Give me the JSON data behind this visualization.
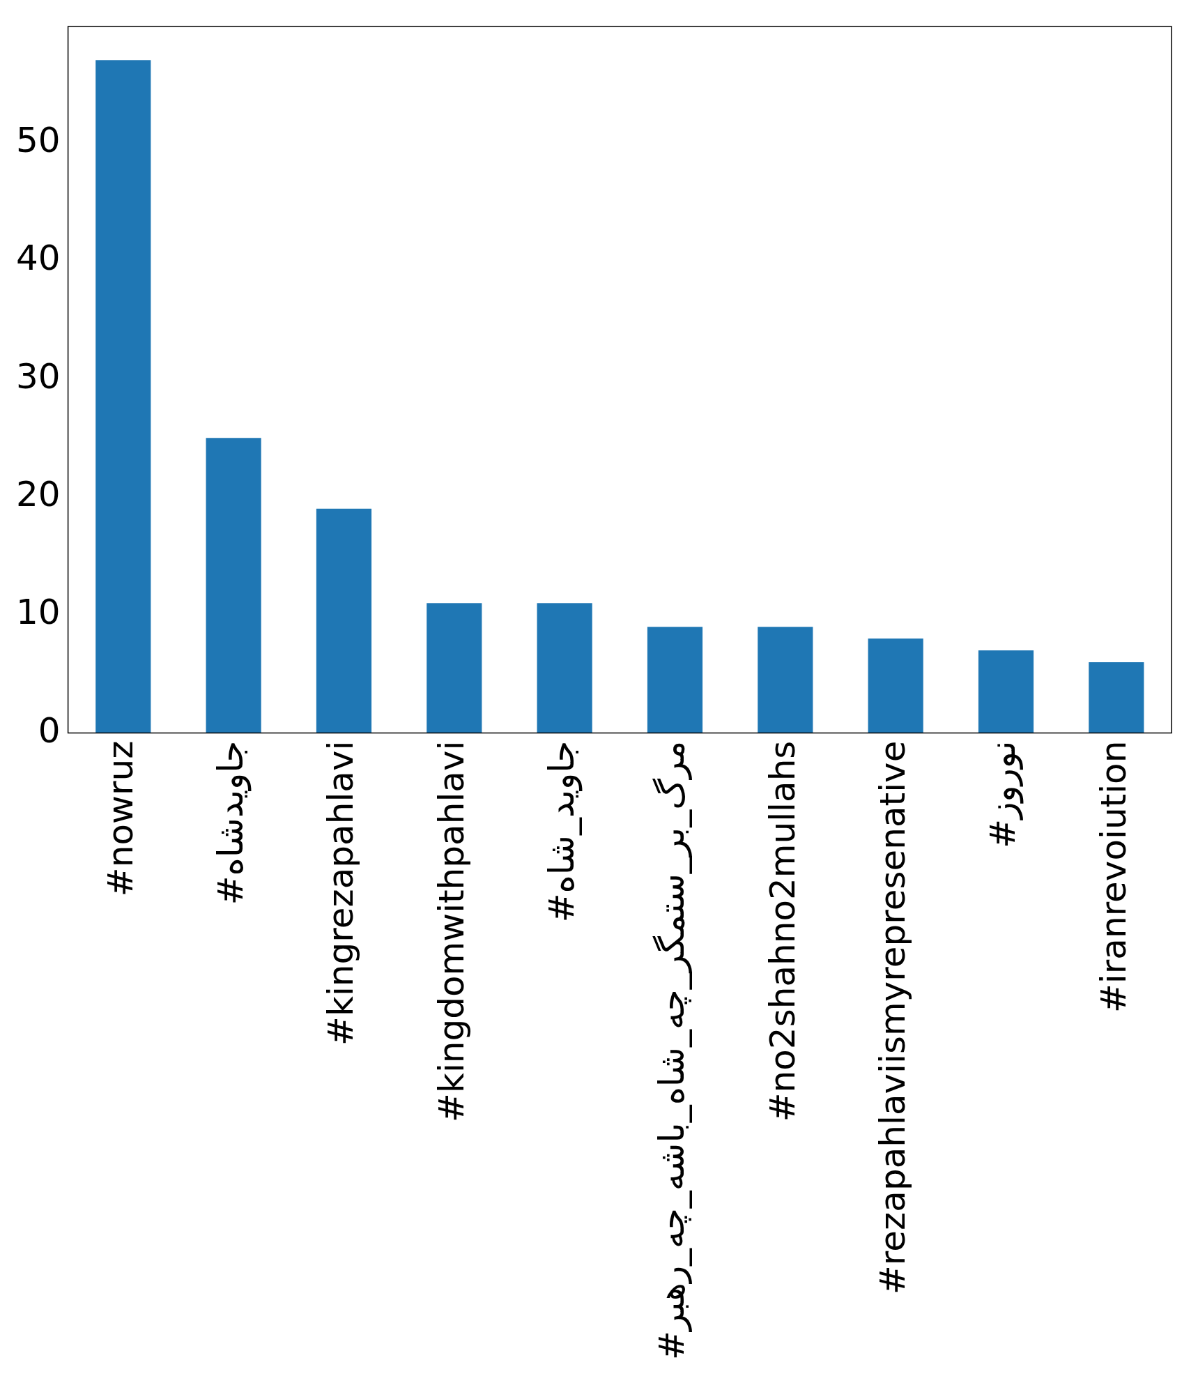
{
  "chart_data": {
    "type": "bar",
    "categories": [
      "#nowruz",
      "#جاویدشاه",
      "#kingrezapahlavi",
      "#kingdomwithpahlavi",
      "#جاوید_شاه",
      "#مرگ_بر_ستمگر_چه_شاه_باشه_چه_رهبر",
      "#no2shahno2mullahs",
      "#rezapahlaviismyrepresenative",
      "#نوروز",
      "#iranrevoiution"
    ],
    "values": [
      57,
      25,
      19,
      11,
      11,
      9,
      9,
      8,
      7,
      6
    ],
    "color": "#1f77b4",
    "ylim": [
      0,
      59.85
    ],
    "yticks": [
      0,
      10,
      20,
      30,
      40,
      50
    ],
    "grid": false,
    "legend": false
  }
}
